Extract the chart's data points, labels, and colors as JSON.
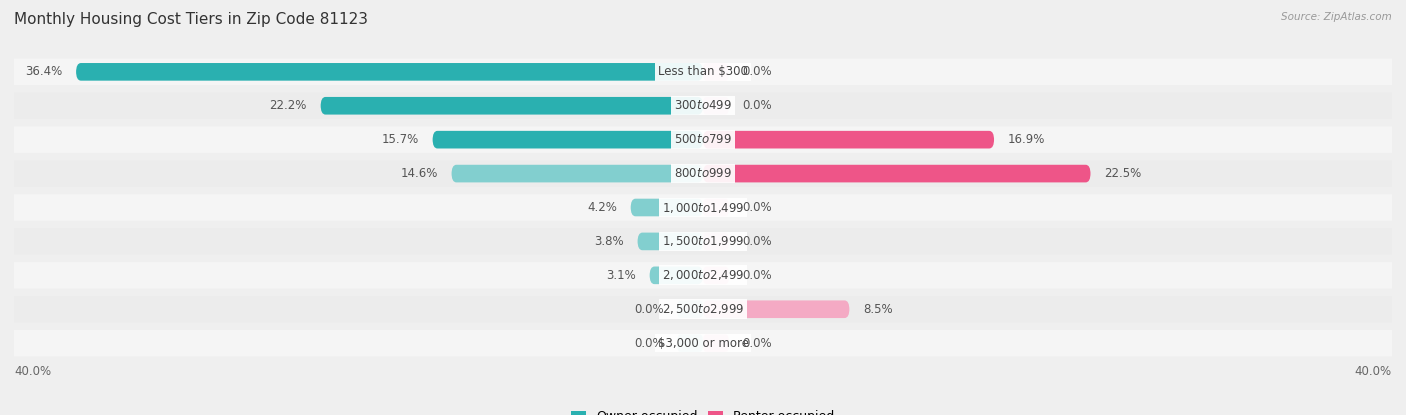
{
  "title": "Monthly Housing Cost Tiers in Zip Code 81123",
  "source": "Source: ZipAtlas.com",
  "categories": [
    "Less than $300",
    "$300 to $499",
    "$500 to $799",
    "$800 to $999",
    "$1,000 to $1,499",
    "$1,500 to $1,999",
    "$2,000 to $2,499",
    "$2,500 to $2,999",
    "$3,000 or more"
  ],
  "owner_values": [
    36.4,
    22.2,
    15.7,
    14.6,
    4.2,
    3.8,
    3.1,
    0.0,
    0.0
  ],
  "renter_values": [
    0.0,
    0.0,
    16.9,
    22.5,
    0.0,
    0.0,
    0.0,
    8.5,
    0.0
  ],
  "owner_color_dark": "#2ab0b0",
  "owner_color_light": "#82cfcf",
  "renter_color_dark": "#ee5588",
  "renter_color_light": "#f4aac4",
  "background_color": "#efefef",
  "row_bg_light": "#f8f8f8",
  "row_bg_dark": "#eeeeee",
  "axis_limit": 40.0,
  "title_fontsize": 11,
  "label_fontsize": 8.5,
  "value_fontsize": 8.5,
  "tick_fontsize": 8.5,
  "legend_fontsize": 9,
  "owner_threshold": 15.0,
  "renter_threshold": 10.0
}
